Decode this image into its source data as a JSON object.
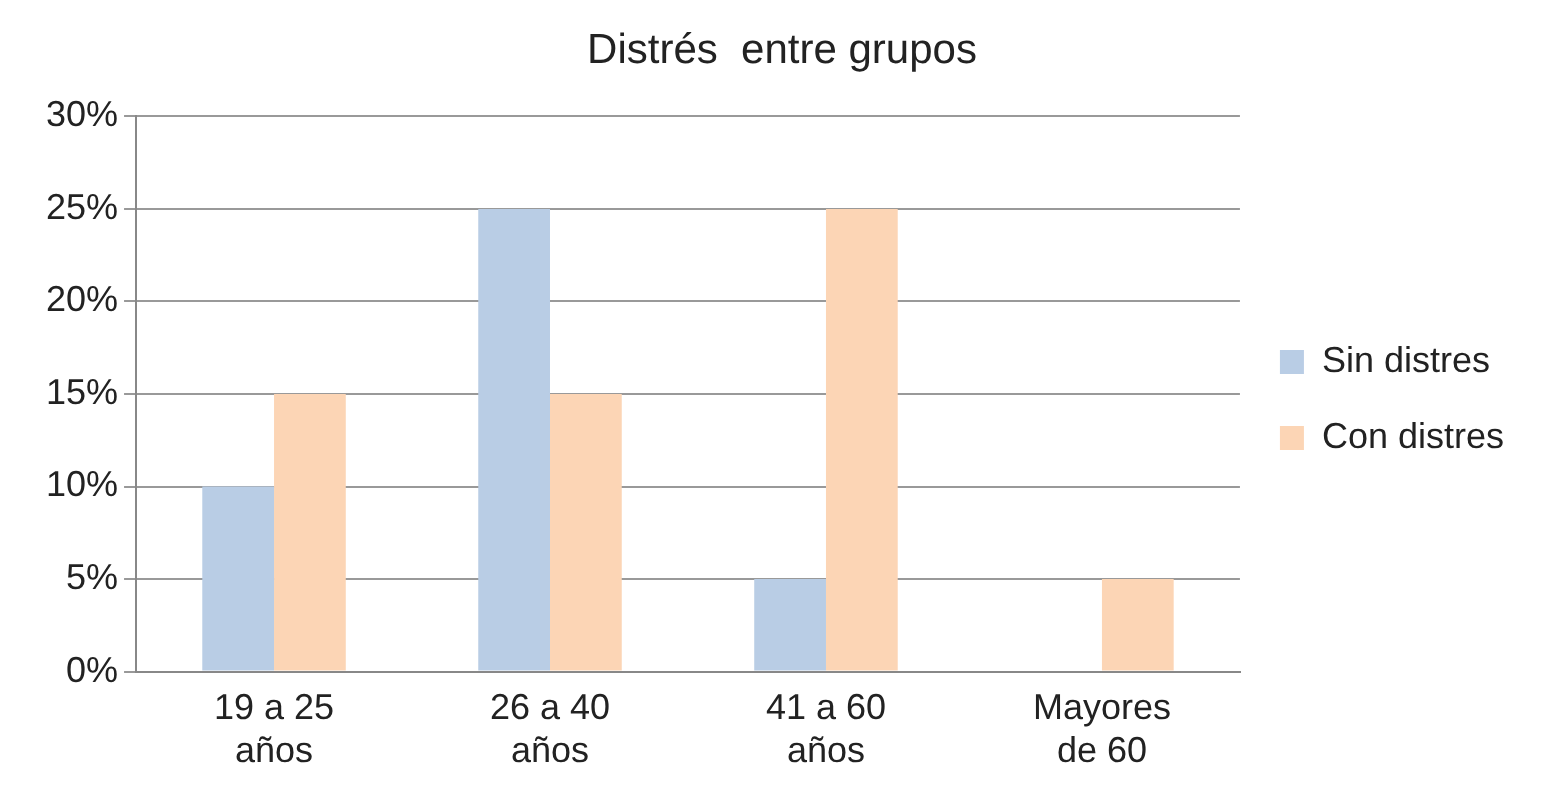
{
  "chart_data": {
    "type": "bar",
    "title": "Distrés  entre grupos",
    "categories": [
      "19 a 25 años",
      "26 a 40 años",
      "41 a 60 años",
      "Mayores de 60"
    ],
    "series": [
      {
        "name": "Sin distres",
        "color": "#b9cde5",
        "values": [
          10,
          25,
          5,
          0
        ]
      },
      {
        "name": "Con distres",
        "color": "#fcd5b5",
        "values": [
          15,
          15,
          25,
          5
        ]
      }
    ],
    "ylim": [
      0,
      30
    ],
    "yticks": [
      {
        "value": 0,
        "label": "0%"
      },
      {
        "value": 5,
        "label": "5%"
      },
      {
        "value": 10,
        "label": "10%"
      },
      {
        "value": 15,
        "label": "15%"
      },
      {
        "value": 20,
        "label": "20%"
      },
      {
        "value": 25,
        "label": "25%"
      },
      {
        "value": 30,
        "label": "30%"
      }
    ],
    "grid": "y",
    "legend": "right"
  }
}
